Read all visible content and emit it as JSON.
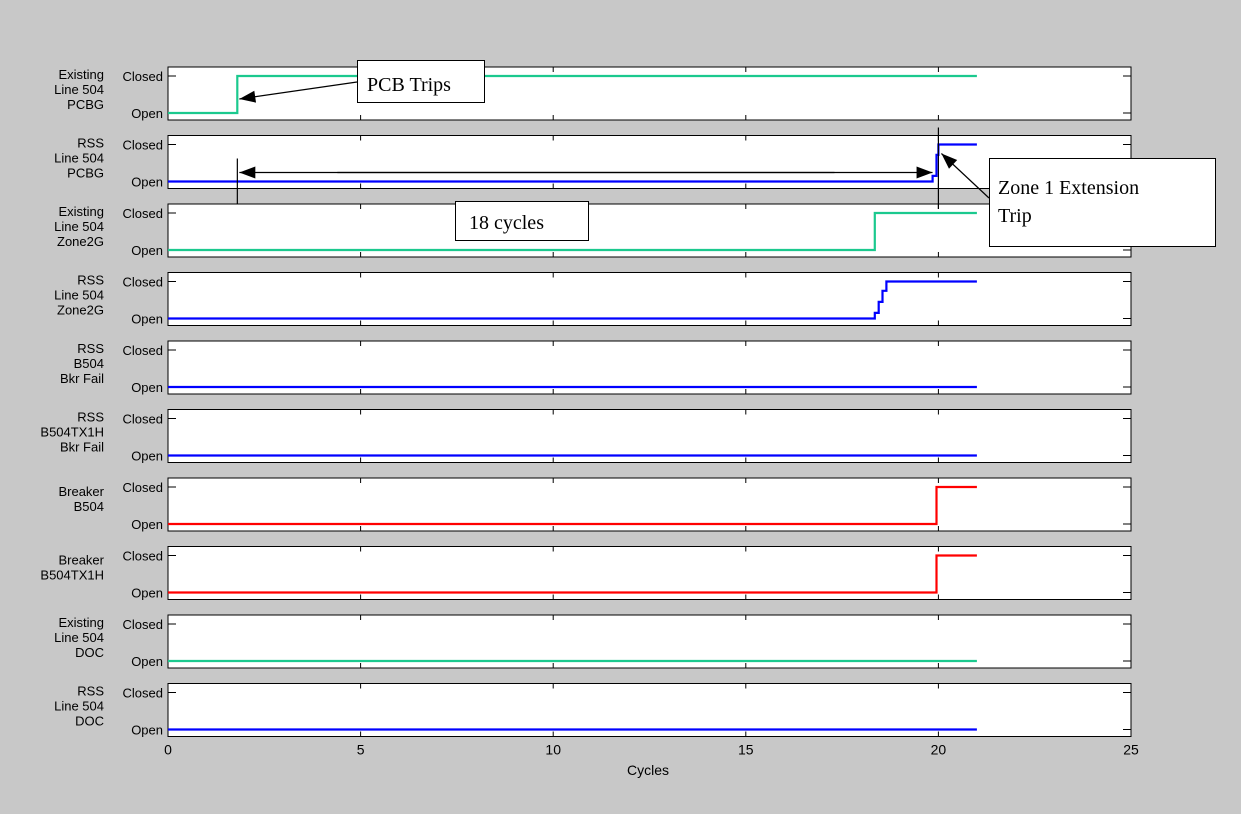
{
  "chart_data": {
    "type": "line",
    "subtype": "stacked-step",
    "xlabel": "Cycles",
    "xlim": [
      0,
      25
    ],
    "x_ticks": [
      "0",
      "5",
      "10",
      "15",
      "20",
      "25"
    ],
    "ylim": [
      0,
      1
    ],
    "y_tick_labels": [
      "Open",
      "Closed"
    ],
    "grid": false,
    "colors": {
      "figure_background": "#c8c8c8",
      "axes_background": "#ffffff",
      "existing": "#1bc98e",
      "rss": "#0000ff",
      "breaker": "#ff0000"
    },
    "panels": [
      {
        "label": [
          "Existing",
          "Line 504",
          "PCBG"
        ],
        "color": "#1bc98e",
        "points": [
          [
            0,
            0
          ],
          [
            1.8,
            0
          ],
          [
            1.8,
            1
          ],
          [
            21,
            1
          ]
        ]
      },
      {
        "label": [
          "RSS",
          "Line 504",
          "PCBG"
        ],
        "color": "#0000ff",
        "points": [
          [
            0,
            0
          ],
          [
            19.85,
            0
          ],
          [
            19.85,
            0.15
          ],
          [
            19.95,
            0.15
          ],
          [
            19.95,
            0.72
          ],
          [
            20,
            0.72
          ],
          [
            20,
            1
          ],
          [
            21,
            1
          ]
        ]
      },
      {
        "label": [
          "Existing",
          "Line 504",
          "Zone2G"
        ],
        "color": "#1bc98e",
        "points": [
          [
            0,
            0
          ],
          [
            18.35,
            0
          ],
          [
            18.35,
            1
          ],
          [
            21,
            1
          ]
        ]
      },
      {
        "label": [
          "RSS",
          "Line 504",
          "Zone2G"
        ],
        "color": "#0000ff",
        "points": [
          [
            0,
            0
          ],
          [
            18.35,
            0
          ],
          [
            18.35,
            0.15
          ],
          [
            18.45,
            0.15
          ],
          [
            18.45,
            0.45
          ],
          [
            18.55,
            0.45
          ],
          [
            18.55,
            0.75
          ],
          [
            18.65,
            0.75
          ],
          [
            18.65,
            1
          ],
          [
            21,
            1
          ]
        ]
      },
      {
        "label": [
          "RSS",
          "B504",
          "Bkr Fail"
        ],
        "color": "#0000ff",
        "points": [
          [
            0,
            0
          ],
          [
            21,
            0
          ]
        ]
      },
      {
        "label": [
          "RSS",
          "B504TX1H",
          "Bkr Fail"
        ],
        "color": "#0000ff",
        "points": [
          [
            0,
            0
          ],
          [
            21,
            0
          ]
        ]
      },
      {
        "label": [
          "Breaker",
          "B504"
        ],
        "color": "#ff0000",
        "points": [
          [
            0,
            0
          ],
          [
            19.95,
            0
          ],
          [
            19.95,
            1
          ],
          [
            21,
            1
          ]
        ]
      },
      {
        "label": [
          "Breaker",
          "B504TX1H"
        ],
        "color": "#ff0000",
        "points": [
          [
            0,
            0
          ],
          [
            19.95,
            0
          ],
          [
            19.95,
            1
          ],
          [
            21,
            1
          ]
        ]
      },
      {
        "label": [
          "Existing",
          "Line 504",
          "DOC"
        ],
        "color": "#1bc98e",
        "points": [
          [
            0,
            0
          ],
          [
            21,
            0
          ]
        ]
      },
      {
        "label": [
          "RSS",
          "Line 504",
          "DOC"
        ],
        "color": "#0000ff",
        "points": [
          [
            0,
            0
          ],
          [
            21,
            0
          ]
        ]
      }
    ],
    "annotations": [
      {
        "text": [
          "PCB Trips"
        ]
      },
      {
        "text": [
          "18 cycles"
        ]
      },
      {
        "text": [
          "Zone 1 Extension",
          "Trip"
        ]
      }
    ]
  }
}
